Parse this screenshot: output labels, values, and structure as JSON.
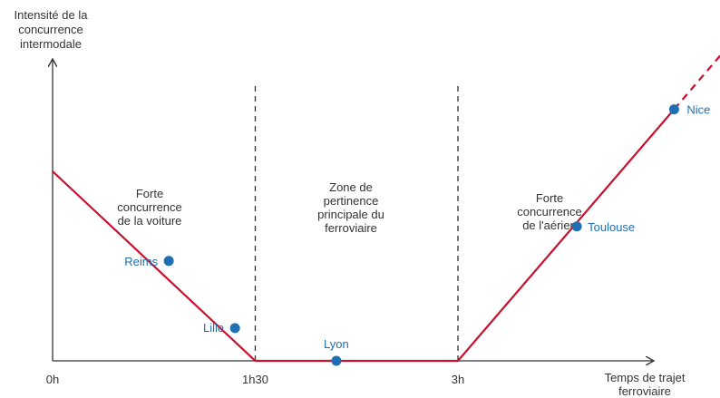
{
  "chart_data": {
    "type": "line",
    "ylabel_lines": [
      "Intensité  de la",
      "concurrence",
      "intermodale"
    ],
    "xlabel_lines": [
      "Temps de trajet",
      "ferroviaire"
    ],
    "x_ticks": [
      {
        "label": "0h",
        "hours": 0
      },
      {
        "label": "1h30",
        "hours": 1.5
      },
      {
        "label": "3h",
        "hours": 3
      }
    ],
    "xlim": [
      0,
      4.7
    ],
    "ylim": [
      0,
      1
    ],
    "curve": [
      {
        "hours": 0,
        "intensity": 0.55
      },
      {
        "hours": 1.5,
        "intensity": 0
      },
      {
        "hours": 3,
        "intensity": 0
      },
      {
        "hours": 4.6,
        "intensity": 0.73
      }
    ],
    "curve_dashed_extension": [
      {
        "hours": 4.6,
        "intensity": 0.73
      },
      {
        "hours": 4.95,
        "intensity": 0.89
      }
    ],
    "dividers_hours": [
      1.5,
      3
    ],
    "zones": [
      {
        "lines": [
          "Forte",
          "concurrence",
          "de la voiture"
        ]
      },
      {
        "lines": [
          "Zone de",
          "pertinence",
          "principale du",
          "ferroviaire"
        ]
      },
      {
        "lines": [
          "Forte",
          "concurrence",
          "de l'aérien"
        ]
      }
    ],
    "points": [
      {
        "label": "Reims",
        "hours": 0.86,
        "intensity": 0.29
      },
      {
        "label": "Lille",
        "hours": 1.35,
        "intensity": 0.095
      },
      {
        "label": "Lyon",
        "hours": 2.1,
        "intensity": 0
      },
      {
        "label": "Toulouse",
        "hours": 3.88,
        "intensity": 0.39
      },
      {
        "label": "Nice",
        "hours": 4.6,
        "intensity": 0.73
      }
    ],
    "colors": {
      "curve": "#c8102e",
      "point": "#1f6fb2",
      "point_label": "#1f6fb2",
      "axis": "#333333",
      "divider": "#333333"
    }
  }
}
